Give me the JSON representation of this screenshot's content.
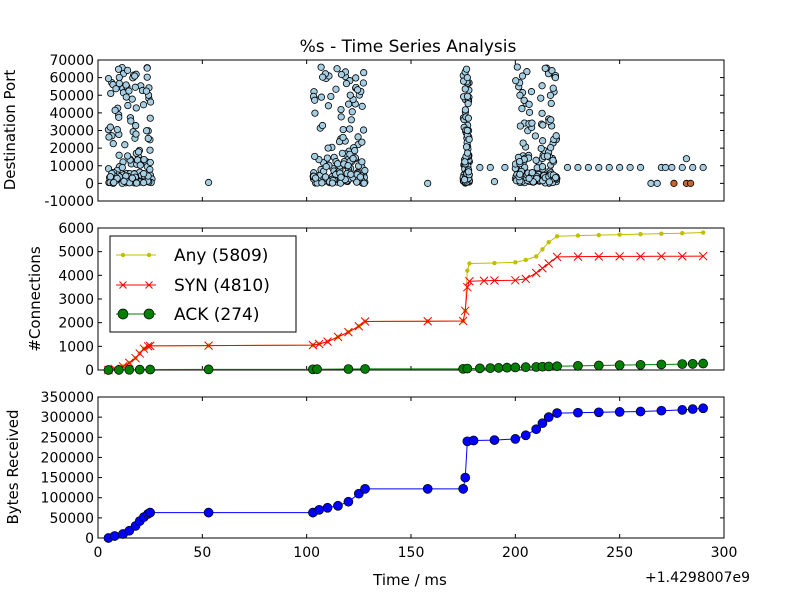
{
  "figure": {
    "title": "%s - Time Series Analysis",
    "xlabel": "Time / ms",
    "offset_label": "+1.4298007e9"
  },
  "colors": {
    "scatter_fill": "#a6cee3",
    "scatter_outlier": "#c4672c",
    "any": "#bfbf00",
    "syn": "#ff0000",
    "ack": "#007f00",
    "bytes": "#0000ff"
  },
  "chart_data": [
    {
      "type": "scatter",
      "ylabel": "Destination Port",
      "xlim": [
        0,
        300
      ],
      "ylim": [
        -10000,
        70000
      ],
      "x_ticks": [],
      "y_ticks": [
        -10000,
        0,
        10000,
        20000,
        30000,
        40000,
        50000,
        60000,
        70000
      ],
      "clusters": [
        {
          "x_range": [
            5,
            26
          ],
          "count": 150
        },
        {
          "x_range": [
            103,
            128
          ],
          "count": 170
        },
        {
          "x_range": [
            175,
            178
          ],
          "count": 110
        },
        {
          "x_range": [
            200,
            220
          ],
          "count": 160
        }
      ],
      "points": [
        [
          53,
          500
        ],
        [
          158,
          0
        ],
        [
          177,
          60000
        ],
        [
          177,
          30000
        ],
        [
          183,
          9000
        ],
        [
          188,
          9000
        ],
        [
          190,
          1000
        ],
        [
          195,
          9000
        ],
        [
          225,
          9000
        ],
        [
          230,
          9000
        ],
        [
          235,
          9000
        ],
        [
          240,
          9000
        ],
        [
          245,
          9000
        ],
        [
          250,
          9000
        ],
        [
          255,
          9000
        ],
        [
          260,
          9000
        ],
        [
          265,
          0
        ],
        [
          270,
          9000
        ],
        [
          275,
          9000
        ],
        [
          280,
          9000
        ],
        [
          282,
          14000
        ],
        [
          285,
          9000
        ],
        [
          290,
          9000
        ],
        [
          268,
          0
        ],
        [
          272,
          9000
        ]
      ],
      "outlier_points": [
        [
          276,
          0
        ],
        [
          282,
          0
        ],
        [
          284,
          0
        ]
      ]
    },
    {
      "type": "line",
      "ylabel": "#Connections",
      "xlim": [
        0,
        300
      ],
      "ylim": [
        0,
        6000
      ],
      "x_ticks": [],
      "y_ticks": [
        0,
        1000,
        2000,
        3000,
        4000,
        5000,
        6000
      ],
      "legend_position": "top-left",
      "series": [
        {
          "name": "Any (5809)",
          "marker": "dot",
          "color": "any",
          "points": [
            [
              5,
              0
            ],
            [
              8,
              50
            ],
            [
              12,
              150
            ],
            [
              15,
              300
            ],
            [
              18,
              500
            ],
            [
              20,
              700
            ],
            [
              22,
              900
            ],
            [
              24,
              1000
            ],
            [
              25,
              1020
            ],
            [
              53,
              1030
            ],
            [
              103,
              1050
            ],
            [
              106,
              1100
            ],
            [
              110,
              1200
            ],
            [
              115,
              1400
            ],
            [
              120,
              1600
            ],
            [
              125,
              1850
            ],
            [
              128,
              2050
            ],
            [
              158,
              2060
            ],
            [
              175,
              2070
            ],
            [
              176,
              2500
            ],
            [
              177,
              4200
            ],
            [
              178,
              4500
            ],
            [
              190,
              4520
            ],
            [
              200,
              4550
            ],
            [
              205,
              4650
            ],
            [
              210,
              4800
            ],
            [
              213,
              5100
            ],
            [
              216,
              5400
            ],
            [
              220,
              5650
            ],
            [
              230,
              5680
            ],
            [
              240,
              5700
            ],
            [
              250,
              5720
            ],
            [
              260,
              5740
            ],
            [
              270,
              5760
            ],
            [
              280,
              5780
            ],
            [
              290,
              5809
            ]
          ]
        },
        {
          "name": "SYN (4810)",
          "marker": "x",
          "color": "syn",
          "points": [
            [
              5,
              0
            ],
            [
              8,
              50
            ],
            [
              12,
              150
            ],
            [
              15,
              300
            ],
            [
              18,
              500
            ],
            [
              20,
              700
            ],
            [
              22,
              900
            ],
            [
              24,
              1000
            ],
            [
              25,
              1020
            ],
            [
              53,
              1030
            ],
            [
              103,
              1050
            ],
            [
              106,
              1100
            ],
            [
              110,
              1200
            ],
            [
              115,
              1400
            ],
            [
              120,
              1600
            ],
            [
              125,
              1850
            ],
            [
              128,
              2050
            ],
            [
              158,
              2060
            ],
            [
              175,
              2070
            ],
            [
              176,
              2500
            ],
            [
              177,
              3500
            ],
            [
              178,
              3750
            ],
            [
              185,
              3770
            ],
            [
              190,
              3780
            ],
            [
              200,
              3790
            ],
            [
              205,
              3850
            ],
            [
              210,
              4100
            ],
            [
              213,
              4300
            ],
            [
              216,
              4500
            ],
            [
              220,
              4780
            ],
            [
              230,
              4790
            ],
            [
              240,
              4795
            ],
            [
              250,
              4800
            ],
            [
              260,
              4802
            ],
            [
              270,
              4805
            ],
            [
              280,
              4808
            ],
            [
              290,
              4810
            ]
          ]
        },
        {
          "name": "ACK (274)",
          "marker": "circle",
          "color": "ack",
          "points": [
            [
              5,
              0
            ],
            [
              10,
              5
            ],
            [
              15,
              10
            ],
            [
              20,
              15
            ],
            [
              25,
              20
            ],
            [
              53,
              25
            ],
            [
              103,
              28
            ],
            [
              105,
              32
            ],
            [
              120,
              40
            ],
            [
              128,
              45
            ],
            [
              175,
              50
            ],
            [
              177,
              60
            ],
            [
              183,
              70
            ],
            [
              188,
              80
            ],
            [
              192,
              90
            ],
            [
              196,
              100
            ],
            [
              200,
              110
            ],
            [
              205,
              120
            ],
            [
              210,
              130
            ],
            [
              213,
              140
            ],
            [
              216,
              150
            ],
            [
              220,
              160
            ],
            [
              230,
              175
            ],
            [
              240,
              190
            ],
            [
              250,
              205
            ],
            [
              260,
              220
            ],
            [
              270,
              235
            ],
            [
              280,
              250
            ],
            [
              285,
              260
            ],
            [
              290,
              274
            ]
          ]
        }
      ]
    },
    {
      "type": "line",
      "ylabel": "Bytes Received",
      "xlabel": "Time / ms",
      "xlim": [
        0,
        300
      ],
      "ylim": [
        0,
        350000
      ],
      "x_ticks": [
        0,
        50,
        100,
        150,
        200,
        250,
        300
      ],
      "y_ticks": [
        0,
        50000,
        100000,
        150000,
        200000,
        250000,
        300000,
        350000
      ],
      "series": [
        {
          "marker": "circle",
          "color": "bytes",
          "points": [
            [
              5,
              0
            ],
            [
              8,
              5000
            ],
            [
              12,
              10000
            ],
            [
              15,
              18000
            ],
            [
              18,
              30000
            ],
            [
              20,
              42000
            ],
            [
              22,
              52000
            ],
            [
              24,
              60000
            ],
            [
              25,
              63000
            ],
            [
              53,
              63000
            ],
            [
              103,
              63000
            ],
            [
              106,
              70000
            ],
            [
              110,
              75000
            ],
            [
              115,
              80000
            ],
            [
              120,
              90000
            ],
            [
              125,
              110000
            ],
            [
              128,
              122000
            ],
            [
              158,
              122000
            ],
            [
              175,
              122000
            ],
            [
              176,
              150000
            ],
            [
              177,
              240000
            ],
            [
              180,
              242000
            ],
            [
              190,
              243000
            ],
            [
              200,
              246000
            ],
            [
              205,
              255000
            ],
            [
              210,
              270000
            ],
            [
              213,
              285000
            ],
            [
              216,
              300000
            ],
            [
              220,
              310000
            ],
            [
              230,
              311000
            ],
            [
              240,
              312000
            ],
            [
              250,
              313000
            ],
            [
              260,
              314000
            ],
            [
              270,
              316000
            ],
            [
              280,
              318000
            ],
            [
              285,
              320000
            ],
            [
              290,
              322000
            ]
          ]
        }
      ]
    }
  ]
}
